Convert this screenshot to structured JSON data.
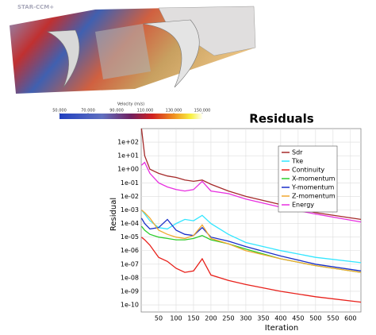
{
  "render": {
    "logo": "STAR-CCM+",
    "colorbar": {
      "title": "Velocity (m/s)",
      "ticks": [
        {
          "value": 50,
          "label": "50.000"
        },
        {
          "value": 70,
          "label": "70.000"
        },
        {
          "value": 90,
          "label": "90.000"
        },
        {
          "value": 110,
          "label": "110.000"
        },
        {
          "value": 130,
          "label": "130.000"
        },
        {
          "value": 150,
          "label": "150.000"
        }
      ],
      "lim": [
        50,
        150
      ]
    }
  },
  "chart_data": {
    "type": "line",
    "title": "Residuals",
    "x_label": "Iteration",
    "y_label": "Residual",
    "x": [
      1,
      10,
      25,
      50,
      75,
      100,
      125,
      150,
      175,
      200,
      250,
      300,
      400,
      500,
      630
    ],
    "series": [
      {
        "name": "Sdr",
        "color": "#a52a2a",
        "values": [
          1000,
          10,
          1,
          0.5,
          0.32,
          0.25,
          0.16,
          0.13,
          0.16,
          0.079,
          0.025,
          0.01,
          0.0025,
          0.00063,
          0.0002
        ]
      },
      {
        "name": "Tke",
        "color": "#33e6ff",
        "values": [
          0.001,
          0.0005,
          0.00016,
          5e-05,
          4e-05,
          0.0001,
          0.0002,
          0.00016,
          0.0004,
          0.0001,
          1.6e-05,
          4e-06,
          1e-06,
          3.2e-07,
          1.3e-07
        ]
      },
      {
        "name": "Continuity",
        "color": "#e8201a",
        "values": [
          1e-05,
          6.3e-06,
          2.5e-06,
          3.2e-07,
          1.6e-07,
          5e-08,
          2.5e-08,
          3.2e-08,
          2.5e-07,
          1.6e-08,
          6.3e-09,
          3.2e-09,
          1e-09,
          4e-10,
          1.6e-10
        ]
      },
      {
        "name": "X-momentum",
        "color": "#2ccc2c",
        "values": [
          6.3e-05,
          3.2e-05,
          1.6e-05,
          1e-05,
          7.9e-06,
          6.3e-06,
          6.3e-06,
          7.9e-06,
          1.3e-05,
          6.3e-06,
          3.2e-06,
          1.3e-06,
          2.5e-07,
          7.9e-08,
          2.5e-08
        ]
      },
      {
        "name": "Y-momentum",
        "color": "#1a2fc8",
        "values": [
          0.00025,
          0.0001,
          4e-05,
          5e-05,
          0.0002,
          3.2e-05,
          1.6e-05,
          1.3e-05,
          5e-05,
          1e-05,
          5e-06,
          2e-06,
          4e-07,
          1e-07,
          3.2e-08
        ]
      },
      {
        "name": "Z-momentum",
        "color": "#f0a830",
        "values": [
          0.001,
          0.00063,
          0.00025,
          3.2e-05,
          1.6e-05,
          1e-05,
          7.9e-06,
          1.3e-05,
          7.9e-05,
          7.9e-06,
          3.2e-06,
          1e-06,
          2.5e-07,
          7.9e-08,
          2.5e-08
        ]
      },
      {
        "name": "Energy",
        "color": "#e830e0",
        "values": [
          2.0,
          3.2,
          0.5,
          0.1,
          0.05,
          0.032,
          0.025,
          0.032,
          0.13,
          0.025,
          0.016,
          0.0063,
          0.0016,
          0.0005,
          0.00013
        ]
      }
    ],
    "xlim": [
      0,
      630
    ],
    "xticks": [
      50,
      100,
      150,
      200,
      250,
      300,
      350,
      400,
      450,
      500,
      550,
      600
    ],
    "ylim": [
      3e-11,
      1000
    ],
    "log_y": true,
    "yticks": [
      {
        "value": 1e-10,
        "label": "1e-10"
      },
      {
        "value": 1e-09,
        "label": "1e-09"
      },
      {
        "value": 1e-08,
        "label": "1e-08"
      },
      {
        "value": 1e-07,
        "label": "1e-07"
      },
      {
        "value": 1e-06,
        "label": "1e-06"
      },
      {
        "value": 1e-05,
        "label": "1e-05"
      },
      {
        "value": 0.0001,
        "label": "1e-04"
      },
      {
        "value": 0.001,
        "label": "1e-03"
      },
      {
        "value": 0.01,
        "label": "1e-02"
      },
      {
        "value": 0.1,
        "label": "1e-01"
      },
      {
        "value": 1,
        "label": "1e+00"
      },
      {
        "value": 10,
        "label": "1e+01"
      },
      {
        "value": 100,
        "label": "1e+02"
      }
    ],
    "grid": true,
    "legend": "upper right"
  }
}
